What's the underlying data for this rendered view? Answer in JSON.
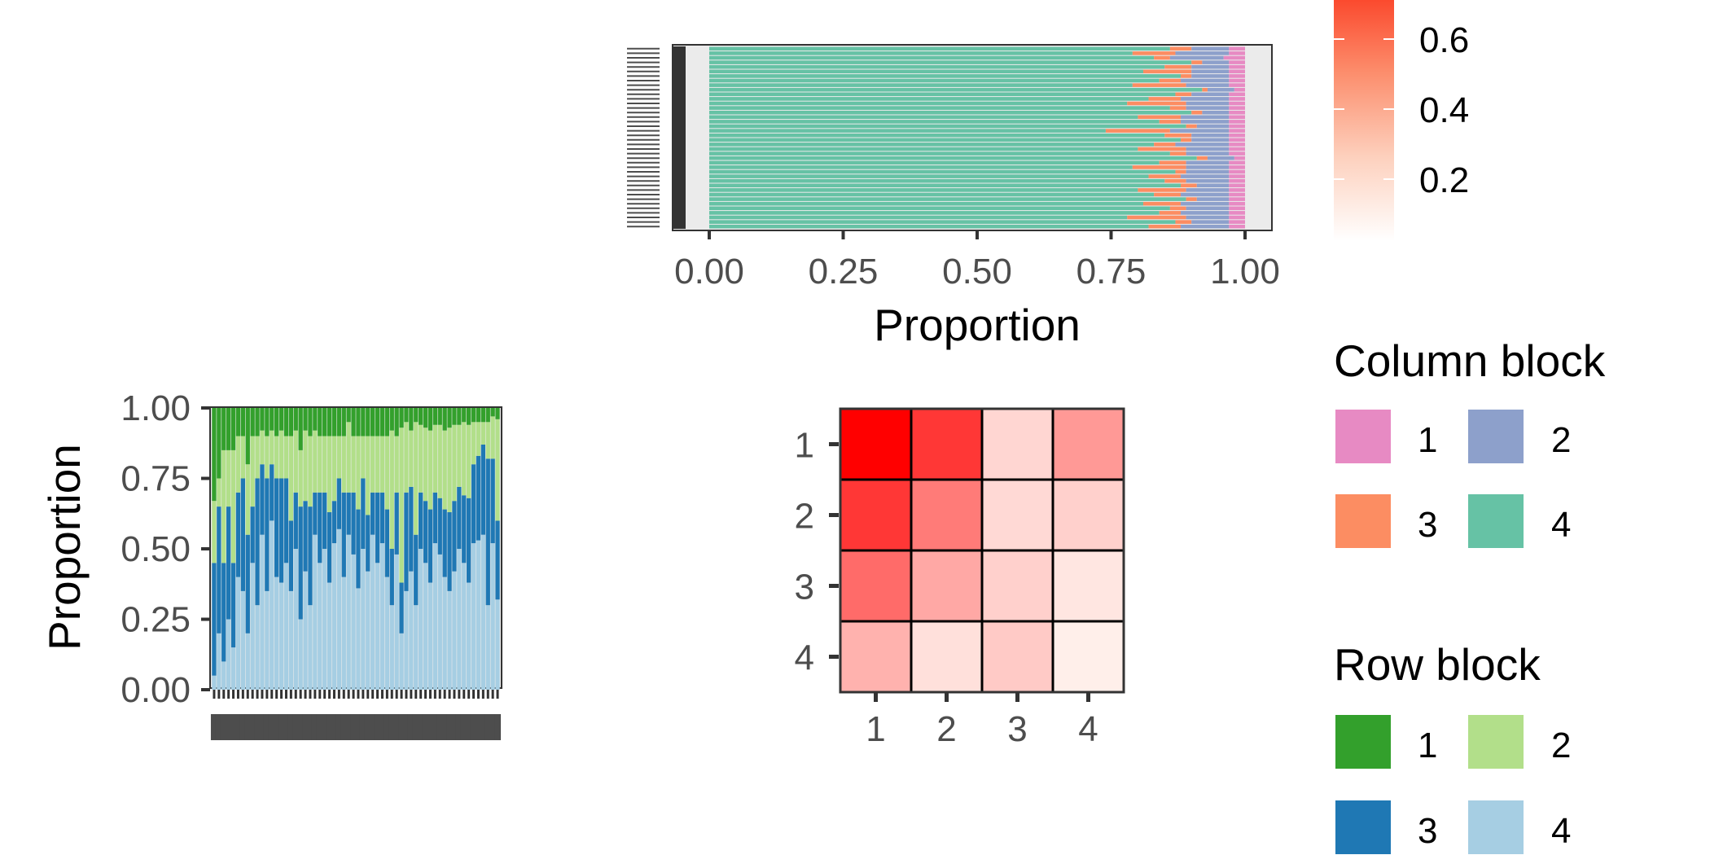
{
  "colors": {
    "row_block": {
      "1": "#33a02c",
      "2": "#b2df8a",
      "3": "#1f78b4",
      "4": "#a6cee3"
    },
    "column_block": {
      "1": "#e78ac3",
      "2": "#8da0cb",
      "3": "#fc8d62",
      "4": "#66c2a5"
    },
    "heat_low": "#fff5f0",
    "heat_high": "#ff0000",
    "panel_bg": "#ebebeb",
    "axis_text": "#4d4d4d"
  },
  "chart_data": [
    {
      "id": "column-proportion-bars",
      "type": "bar",
      "orientation": "horizontal",
      "stacked": true,
      "xlabel": "Proportion",
      "ylabel": "",
      "xlim": [
        0,
        1
      ],
      "x_ticks": [
        "0.00",
        "0.25",
        "0.50",
        "0.75",
        "1.00"
      ],
      "y_tick_labels_legible": false,
      "bar_count": 40,
      "stack_order": [
        "4",
        "3",
        "2",
        "1"
      ],
      "series": [
        {
          "name": "4",
          "values": [
            0.86,
            0.79,
            0.83,
            0.9,
            0.85,
            0.81,
            0.88,
            0.84,
            0.79,
            0.92,
            0.87,
            0.82,
            0.78,
            0.86,
            0.9,
            0.8,
            0.84,
            0.89,
            0.74,
            0.85,
            0.88,
            0.83,
            0.8,
            0.86,
            0.91,
            0.84,
            0.79,
            0.87,
            0.82,
            0.85,
            0.88,
            0.8,
            0.83,
            0.89,
            0.81,
            0.86,
            0.84,
            0.78,
            0.87,
            0.82
          ]
        },
        {
          "name": "3",
          "values": [
            0.04,
            0.08,
            0.03,
            0.02,
            0.05,
            0.09,
            0.02,
            0.04,
            0.1,
            0.01,
            0.03,
            0.06,
            0.11,
            0.03,
            0.02,
            0.08,
            0.04,
            0.02,
            0.12,
            0.05,
            0.02,
            0.04,
            0.09,
            0.03,
            0.02,
            0.05,
            0.1,
            0.02,
            0.06,
            0.04,
            0.03,
            0.09,
            0.05,
            0.02,
            0.07,
            0.03,
            0.04,
            0.11,
            0.03,
            0.06
          ]
        },
        {
          "name": "2",
          "values": [
            0.07,
            0.1,
            0.1,
            0.05,
            0.07,
            0.07,
            0.07,
            0.09,
            0.08,
            0.05,
            0.07,
            0.09,
            0.08,
            0.08,
            0.05,
            0.09,
            0.09,
            0.06,
            0.11,
            0.07,
            0.07,
            0.1,
            0.08,
            0.08,
            0.05,
            0.08,
            0.08,
            0.08,
            0.09,
            0.08,
            0.06,
            0.08,
            0.09,
            0.06,
            0.09,
            0.08,
            0.09,
            0.08,
            0.07,
            0.09
          ]
        },
        {
          "name": "1",
          "values": [
            0.03,
            0.03,
            0.04,
            0.03,
            0.03,
            0.03,
            0.03,
            0.03,
            0.03,
            0.02,
            0.03,
            0.03,
            0.03,
            0.03,
            0.03,
            0.03,
            0.03,
            0.03,
            0.03,
            0.03,
            0.03,
            0.03,
            0.03,
            0.03,
            0.02,
            0.03,
            0.03,
            0.03,
            0.03,
            0.03,
            0.03,
            0.03,
            0.03,
            0.03,
            0.03,
            0.03,
            0.03,
            0.03,
            0.03,
            0.03
          ]
        }
      ]
    },
    {
      "id": "row-proportion-bars",
      "type": "bar",
      "orientation": "vertical",
      "stacked": true,
      "xlabel": "",
      "ylabel": "Proportion",
      "ylim": [
        0,
        1
      ],
      "y_ticks": [
        "0.00",
        "0.25",
        "0.50",
        "0.75",
        "1.00"
      ],
      "x_tick_labels_legible": false,
      "bar_count": 60,
      "stack_order": [
        "4",
        "3",
        "2",
        "1"
      ],
      "series": [
        {
          "name": "4",
          "values": [
            0.05,
            0.2,
            0.1,
            0.25,
            0.15,
            0.4,
            0.35,
            0.2,
            0.45,
            0.3,
            0.55,
            0.35,
            0.6,
            0.4,
            0.38,
            0.45,
            0.35,
            0.5,
            0.25,
            0.42,
            0.3,
            0.55,
            0.45,
            0.5,
            0.38,
            0.52,
            0.57,
            0.4,
            0.55,
            0.48,
            0.36,
            0.5,
            0.42,
            0.55,
            0.45,
            0.52,
            0.4,
            0.3,
            0.48,
            0.2,
            0.35,
            0.42,
            0.3,
            0.5,
            0.45,
            0.38,
            0.52,
            0.48,
            0.4,
            0.35,
            0.42,
            0.5,
            0.45,
            0.38,
            0.52,
            0.53,
            0.55,
            0.3,
            0.52,
            0.32
          ]
        },
        {
          "name": "3",
          "values": [
            0.4,
            0.45,
            0.35,
            0.4,
            0.3,
            0.3,
            0.4,
            0.35,
            0.2,
            0.45,
            0.25,
            0.4,
            0.2,
            0.35,
            0.37,
            0.3,
            0.25,
            0.2,
            0.4,
            0.25,
            0.35,
            0.15,
            0.25,
            0.2,
            0.25,
            0.15,
            0.18,
            0.3,
            0.15,
            0.22,
            0.28,
            0.25,
            0.2,
            0.15,
            0.25,
            0.18,
            0.24,
            0.2,
            0.22,
            0.18,
            0.35,
            0.3,
            0.25,
            0.2,
            0.22,
            0.26,
            0.18,
            0.2,
            0.24,
            0.28,
            0.25,
            0.22,
            0.24,
            0.3,
            0.28,
            0.3,
            0.32,
            0.52,
            0.3,
            0.28
          ]
        },
        {
          "name": "2",
          "values": [
            0.22,
            0.1,
            0.4,
            0.2,
            0.4,
            0.2,
            0.15,
            0.25,
            0.25,
            0.15,
            0.12,
            0.15,
            0.12,
            0.15,
            0.17,
            0.15,
            0.3,
            0.22,
            0.2,
            0.25,
            0.25,
            0.22,
            0.2,
            0.2,
            0.27,
            0.23,
            0.15,
            0.2,
            0.25,
            0.2,
            0.26,
            0.15,
            0.28,
            0.2,
            0.2,
            0.2,
            0.26,
            0.42,
            0.2,
            0.55,
            0.25,
            0.2,
            0.4,
            0.24,
            0.26,
            0.28,
            0.24,
            0.26,
            0.28,
            0.3,
            0.27,
            0.22,
            0.26,
            0.26,
            0.15,
            0.12,
            0.08,
            0.13,
            0.15,
            0.36
          ]
        },
        {
          "name": "1",
          "values": [
            0.33,
            0.25,
            0.15,
            0.15,
            0.15,
            0.1,
            0.1,
            0.2,
            0.1,
            0.1,
            0.08,
            0.1,
            0.08,
            0.1,
            0.08,
            0.1,
            0.1,
            0.08,
            0.15,
            0.08,
            0.1,
            0.08,
            0.1,
            0.1,
            0.1,
            0.1,
            0.1,
            0.1,
            0.05,
            0.1,
            0.1,
            0.1,
            0.1,
            0.1,
            0.1,
            0.1,
            0.1,
            0.08,
            0.1,
            0.07,
            0.05,
            0.08,
            0.05,
            0.06,
            0.07,
            0.08,
            0.06,
            0.06,
            0.08,
            0.07,
            0.06,
            0.06,
            0.05,
            0.06,
            0.05,
            0.05,
            0.05,
            0.05,
            0.03,
            0.04
          ]
        }
      ]
    },
    {
      "id": "block-heatmap",
      "type": "heatmap",
      "x_categories": [
        "1",
        "2",
        "3",
        "4"
      ],
      "y_categories": [
        "1",
        "2",
        "3",
        "4"
      ],
      "values": [
        [
          0.8,
          0.62,
          0.1,
          0.3
        ],
        [
          0.62,
          0.4,
          0.09,
          0.12
        ],
        [
          0.45,
          0.25,
          0.12,
          0.05
        ],
        [
          0.22,
          0.07,
          0.14,
          0.02
        ]
      ],
      "vmin": 0,
      "vmax": 0.8,
      "colorbar_ticks": [
        "0.2",
        "0.4",
        "0.6"
      ]
    }
  ],
  "legends": {
    "column_block": {
      "title": "Column block",
      "entries": [
        "1",
        "2",
        "3",
        "4"
      ]
    },
    "row_block": {
      "title": "Row block",
      "entries": [
        "1",
        "2",
        "3",
        "4"
      ]
    }
  }
}
